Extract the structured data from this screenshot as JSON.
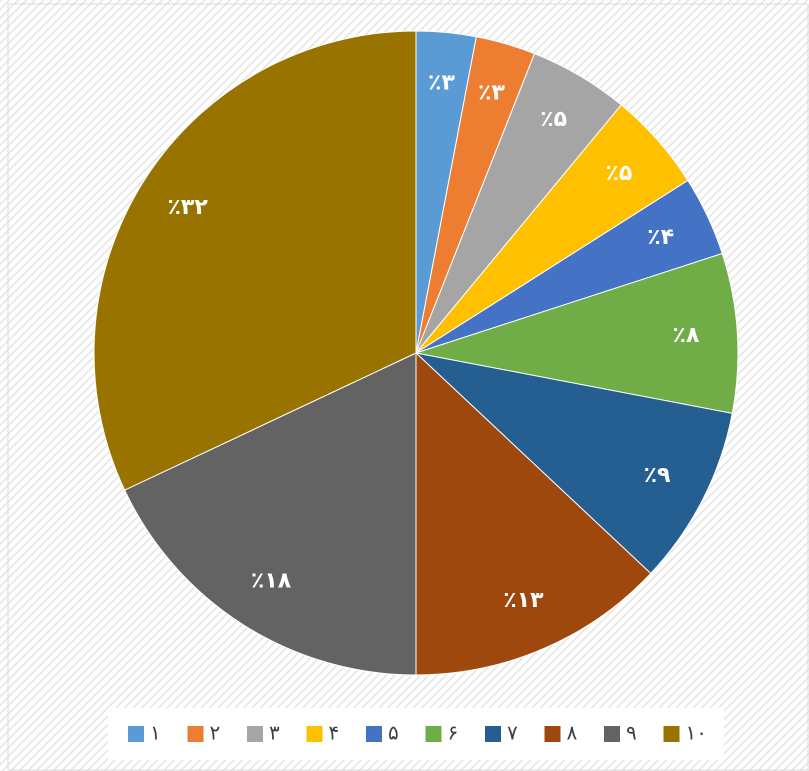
{
  "chart_data": {
    "type": "pie",
    "categories": [
      "۱",
      "۲",
      "۳",
      "۴",
      "۵",
      "۶",
      "۷",
      "۸",
      "۹",
      "۱۰"
    ],
    "values": [
      3,
      3,
      5,
      5,
      4,
      8,
      9,
      13,
      18,
      32
    ],
    "value_labels": [
      "٪۳",
      "٪۳",
      "٪۵",
      "٪۵",
      "٪۴",
      "٪۸",
      "٪۹",
      "٪۱۳",
      "٪۱۸",
      "٪۳۲"
    ],
    "colors": [
      "#5b9bd5",
      "#ed7d31",
      "#a5a5a5",
      "#ffc000",
      "#4472c4",
      "#70ad47",
      "#255e91",
      "#9e480e",
      "#636363",
      "#997300"
    ],
    "legend": "bottom"
  }
}
